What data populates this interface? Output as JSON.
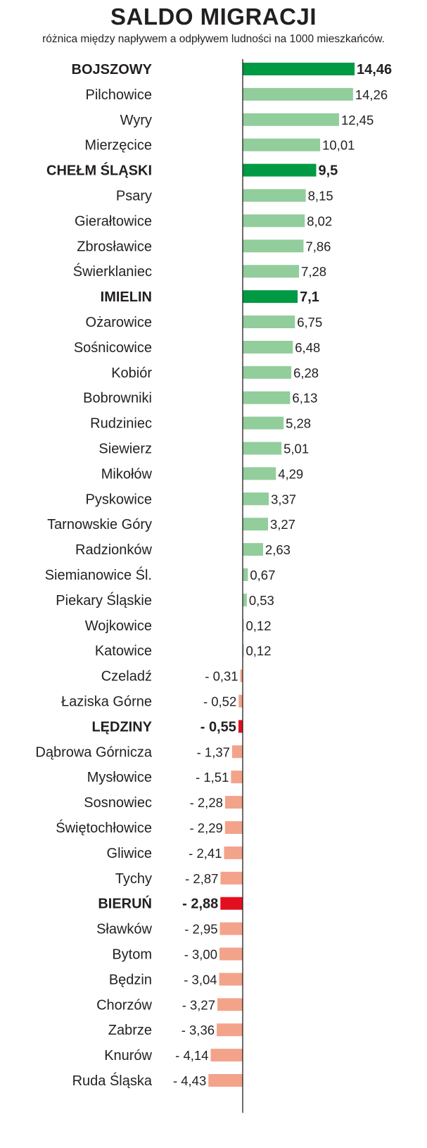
{
  "title": "SALDO MIGRACJI",
  "subtitle": "różnica między napływem a odpływem ludności na 1000 mieszkańców.",
  "colors": {
    "positive": "#92cd9c",
    "positive_highlight": "#009a45",
    "negative": "#f3a38a",
    "negative_highlight": "#e2101e",
    "axis": "#231f20"
  },
  "chart_data": {
    "type": "bar",
    "orientation": "horizontal",
    "categories": [
      "BOJSZOWY",
      "Pilchowice",
      "Wyry",
      "Mierzęcice",
      "CHEŁM ŚLĄSKI",
      "Psary",
      "Gierałtowice",
      "Zbrosławice",
      "Świerklaniec",
      "IMIELIN",
      "Ożarowice",
      "Sośnicowice",
      "Kobiór",
      "Bobrowniki",
      "Rudziniec",
      "Siewierz",
      "Mikołów",
      "Pyskowice",
      "Tarnowskie Góry",
      "Radzionków",
      "Siemianowice Śl.",
      "Piekary Śląskie",
      "Wojkowice",
      "Katowice",
      "Czeladź",
      "Łaziska Górne",
      "LĘDZINY",
      "Dąbrowa Górnicza",
      "Mysłowice",
      "Sosnowiec",
      "Świętochłowice",
      "Gliwice",
      "Tychy",
      "BIERUŃ",
      "Sławków",
      "Bytom",
      "Będzin",
      "Chorzów",
      "Zabrze",
      "Knurów",
      "Ruda Śląska"
    ],
    "values": [
      14.46,
      14.26,
      12.45,
      10.01,
      9.5,
      8.15,
      8.02,
      7.86,
      7.28,
      7.1,
      6.75,
      6.48,
      6.28,
      6.13,
      5.28,
      5.01,
      4.29,
      3.37,
      3.27,
      2.63,
      0.67,
      0.53,
      0.12,
      0.12,
      -0.31,
      -0.52,
      -0.55,
      -1.37,
      -1.51,
      -2.28,
      -2.29,
      -2.41,
      -2.87,
      -2.88,
      -2.95,
      -3.0,
      -3.04,
      -3.27,
      -3.36,
      -4.14,
      -4.43
    ],
    "value_labels": [
      "14,46",
      "14,26",
      "12,45",
      "10,01",
      "9,5",
      "8,15",
      "8,02",
      "7,86",
      "7,28",
      "7,1",
      "6,75",
      "6,48",
      "6,28",
      "6,13",
      "5,28",
      "5,01",
      "4,29",
      "3,37",
      "3,27",
      "2,63",
      "0,67",
      "0,53",
      "0,12",
      "0,12",
      "- 0,31",
      "- 0,52",
      "- 0,55",
      "- 1,37",
      "- 1,51",
      "- 2,28",
      "- 2,29",
      "- 2,41",
      "- 2,87",
      "- 2,88",
      "- 2,95",
      "- 3,00",
      "- 3,04",
      "- 3,27",
      "- 3,36",
      "- 4,14",
      "- 4,43"
    ],
    "highlighted": [
      "BOJSZOWY",
      "CHEŁM ŚLĄSKI",
      "IMIELIN",
      "LĘDZINY",
      "BIERUŃ"
    ],
    "xlabel": "",
    "ylabel": "",
    "xlim": [
      -4.43,
      14.46
    ],
    "grid": false,
    "legend": "none"
  }
}
